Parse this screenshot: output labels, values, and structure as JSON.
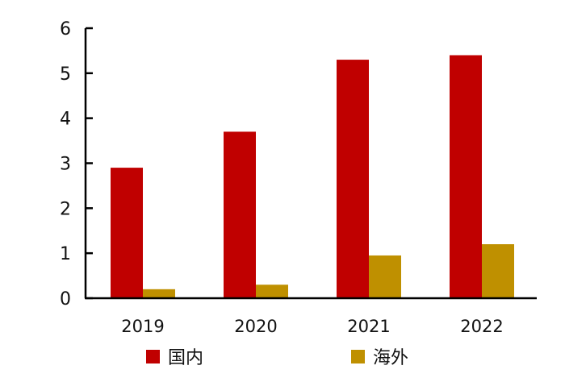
{
  "chart_data": {
    "type": "bar",
    "title": "",
    "xlabel": "",
    "ylabel": "",
    "ylim": [
      0,
      6
    ],
    "yticks": [
      0,
      1,
      2,
      3,
      4,
      5,
      6
    ],
    "categories": [
      "2019",
      "2020",
      "2021",
      "2022"
    ],
    "series": [
      {
        "name": "国内",
        "color": "#C00000",
        "values": [
          2.9,
          3.7,
          5.3,
          5.4
        ]
      },
      {
        "name": "海外",
        "color": "#BF9000",
        "values": [
          0.2,
          0.3,
          0.95,
          1.2
        ]
      }
    ],
    "grid": false,
    "legend_position": "bottom"
  },
  "legend": {
    "items": [
      {
        "label": "国内",
        "color": "#C00000"
      },
      {
        "label": "海外",
        "color": "#BF9000"
      }
    ]
  }
}
